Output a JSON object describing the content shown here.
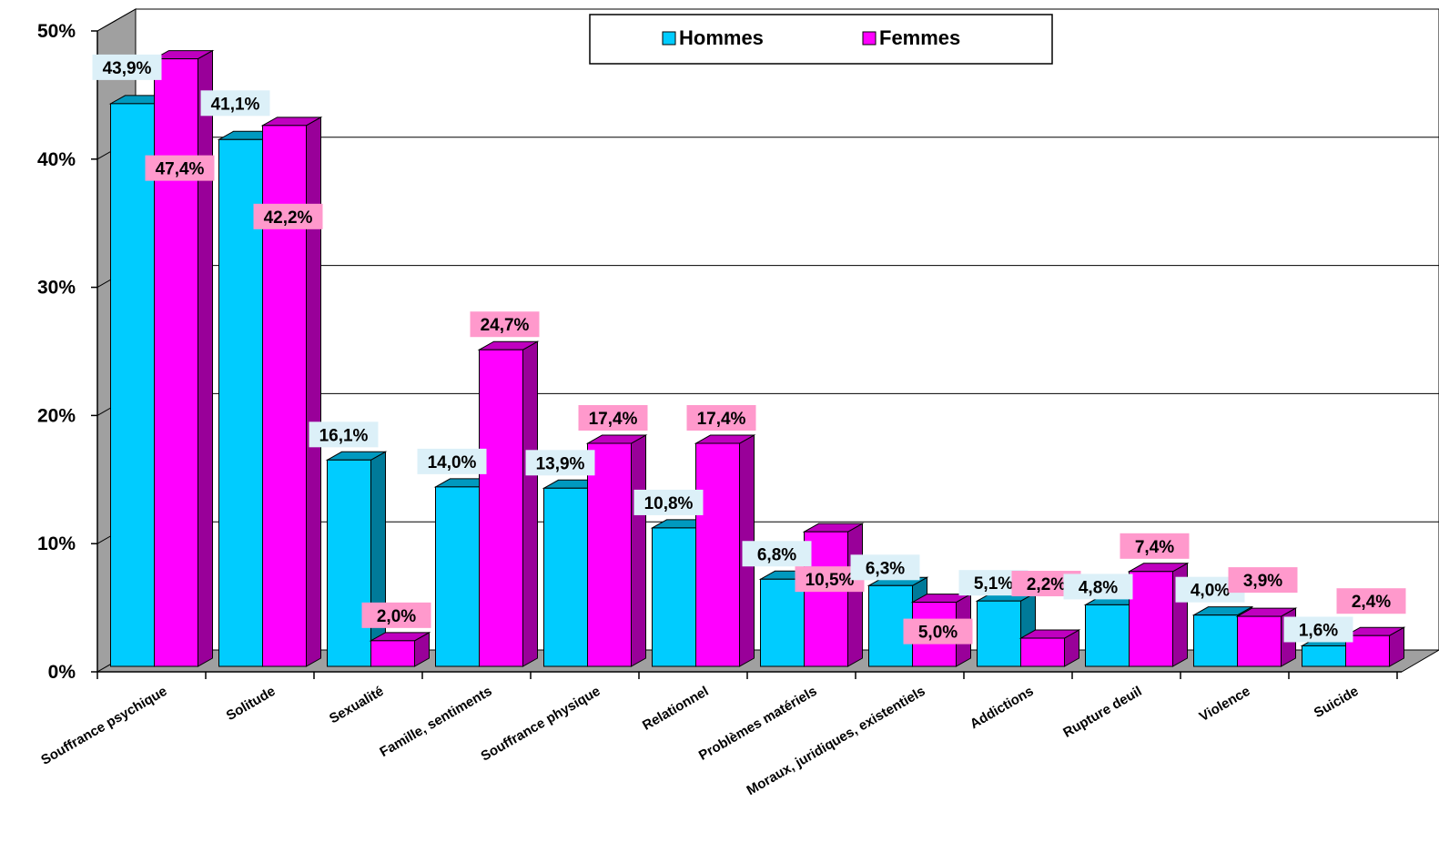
{
  "chart_data": {
    "type": "bar",
    "categories": [
      "Souffrance psychique",
      "Solitude",
      "Sexualité",
      "Famille, sentiments",
      "Souffrance physique",
      "Relationnel",
      "Problèmes matériels",
      "Moraux, juridiques, existentiels",
      "Addictions",
      "Rupture deuil",
      "Violence",
      "Suicide"
    ],
    "series": [
      {
        "name": "Hommes",
        "color": "#00ccff",
        "values": [
          43.9,
          41.1,
          16.1,
          14.0,
          13.9,
          10.8,
          6.8,
          6.3,
          5.1,
          4.8,
          4.0,
          1.6
        ],
        "labels": [
          "43,9%",
          "41,1%",
          "16,1%",
          "14,0%",
          "13,9%",
          "10,8%",
          "6,8%",
          "6,3%",
          "5,1%",
          "4,8%",
          "4,0%",
          "1,6%"
        ]
      },
      {
        "name": "Femmes",
        "color": "#ff00ff",
        "values": [
          47.4,
          42.2,
          2.0,
          24.7,
          17.4,
          17.4,
          10.5,
          5.0,
          2.2,
          7.4,
          3.9,
          2.4
        ],
        "labels": [
          "47,4%",
          "42,2%",
          "2,0%",
          "24,7%",
          "17,4%",
          "17,4%",
          "10,5%",
          "5,0%",
          "2,2%",
          "7,4%",
          "3,9%",
          "2,4%"
        ]
      }
    ],
    "ylim": [
      0,
      50
    ],
    "yticks": [
      "0%",
      "10%",
      "20%",
      "30%",
      "40%",
      "50%"
    ],
    "grid": true,
    "legend": "top-center",
    "three_d": true
  }
}
